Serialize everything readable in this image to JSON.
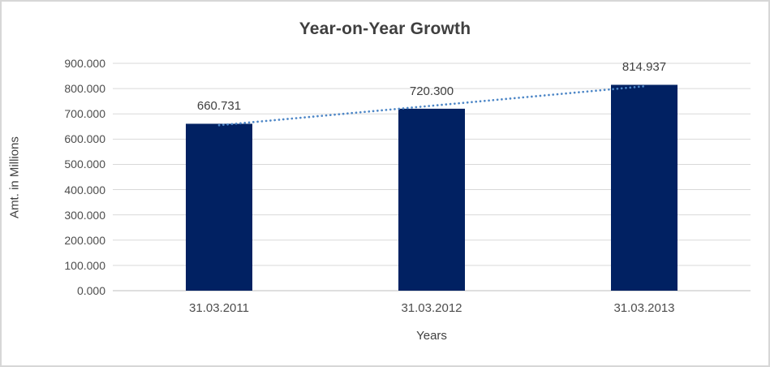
{
  "chart_data": {
    "type": "bar",
    "title": "Year-on-Year Growth",
    "categories": [
      "31.03.2011",
      "31.03.2012",
      "31.03.2013"
    ],
    "values": [
      660.731,
      720.3,
      814.937
    ],
    "value_labels": [
      "660.731",
      "720.300",
      "814.937"
    ],
    "xlabel": "Years",
    "ylabel": "Amt. in Millions",
    "ylim": [
      0,
      900
    ],
    "ytick_step": 100,
    "ytick_labels": [
      "0.000",
      "100.000",
      "200.000",
      "300.000",
      "400.000",
      "500.000",
      "600.000",
      "700.000",
      "800.000",
      "900.000"
    ],
    "grid": true,
    "legend": "none",
    "trendline": {
      "kind": "linear",
      "style": "dotted",
      "fit_endpoints": [
        654.886,
        809.092
      ]
    }
  },
  "colors": {
    "bar_fill": "#012162",
    "trendline": "#4e87c7",
    "gridline": "#d9d9d9",
    "axis_line": "#bfbfbf",
    "title_text": "#3f3f3f",
    "label_text": "#4d4d4d",
    "frame_border": "#d7d7d7",
    "background": "#ffffff"
  }
}
